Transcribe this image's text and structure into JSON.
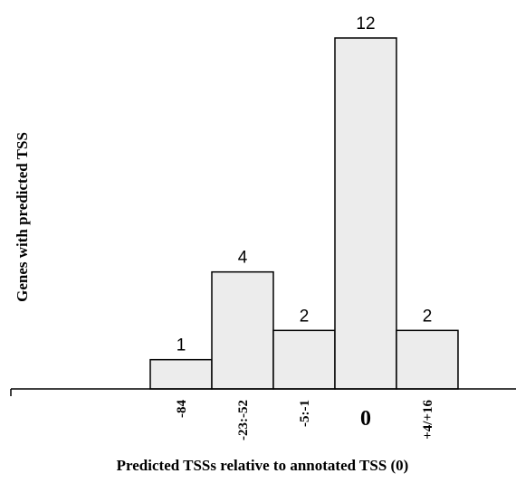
{
  "chart_data": {
    "type": "bar",
    "categories": [
      "-84",
      "-23:-52",
      "-5:-1",
      "0",
      "+4/+16"
    ],
    "values": [
      1,
      4,
      2,
      12,
      2
    ],
    "data_labels": [
      "1",
      "4",
      "2",
      "12",
      "2"
    ],
    "emphasized_category": "0",
    "xlabel": "Predicted TSSs relative to annotated TSS (0)",
    "ylabel": "Genes with predicted TSS",
    "ylim": [
      0,
      12
    ],
    "grid": false,
    "legend": "none",
    "bar_color": "#ececec",
    "edge_color": "#000000"
  }
}
